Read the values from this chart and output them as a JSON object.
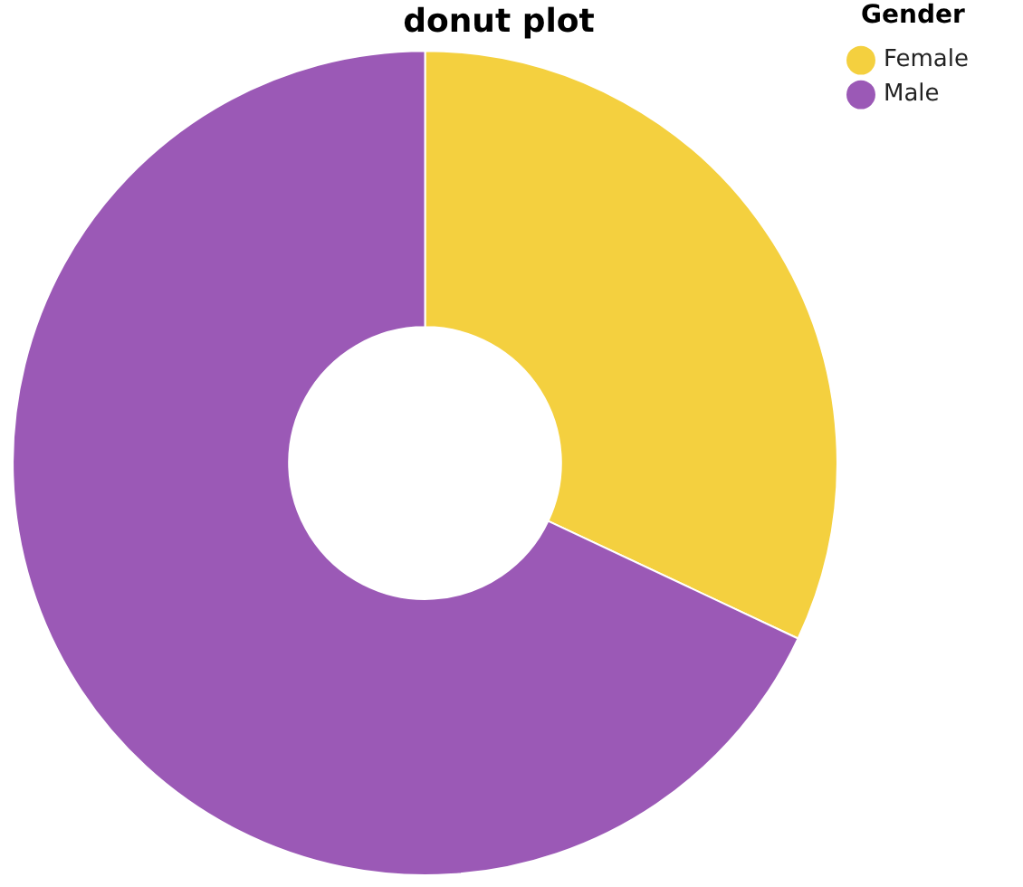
{
  "chart_data": {
    "type": "donut",
    "title": "donut plot",
    "legend_title": "Gender",
    "legend": "top right",
    "categories": [
      "Female",
      "Male"
    ],
    "values": [
      32,
      68
    ],
    "colors": [
      "#f4d03f",
      "#9b59b6"
    ]
  }
}
